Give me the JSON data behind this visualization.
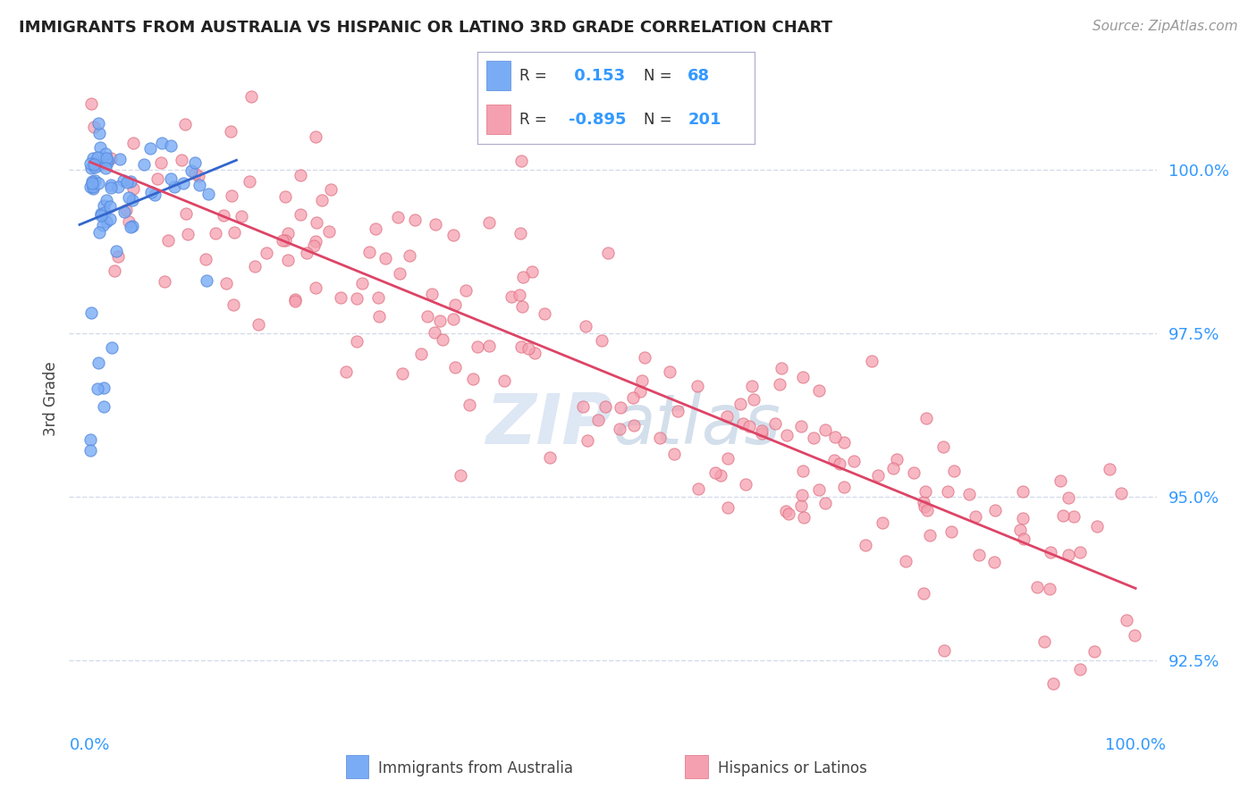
{
  "title": "IMMIGRANTS FROM AUSTRALIA VS HISPANIC OR LATINO 3RD GRADE CORRELATION CHART",
  "source": "Source: ZipAtlas.com",
  "ylabel": "3rd Grade",
  "xlim": [
    -2.0,
    102.0
  ],
  "ylim": [
    91.5,
    101.5
  ],
  "yticks": [
    92.5,
    95.0,
    97.5,
    100.0
  ],
  "ytick_labels": [
    "92.5%",
    "95.0%",
    "97.5%",
    "100.0%"
  ],
  "xtick_labels": [
    "0.0%",
    "100.0%"
  ],
  "blue_R": 0.153,
  "blue_N": 68,
  "pink_R": -0.895,
  "pink_N": 201,
  "blue_color": "#7aabf5",
  "pink_color": "#f5a0b0",
  "blue_edge_color": "#5588dd",
  "pink_edge_color": "#e07080",
  "blue_line_color": "#3366cc",
  "pink_line_color": "#dd4466",
  "legend_label_blue": "Immigrants from Australia",
  "legend_label_pink": "Hispanics or Latinos",
  "watermark": "ZIPAtlas",
  "background_color": "#ffffff",
  "grid_color": "#d0d8e8",
  "title_color": "#222222",
  "axis_label_color": "#444444",
  "tick_color": "#3399ff",
  "legend_val_color": "#3399ff",
  "legend_border_color": "#aaaacc"
}
